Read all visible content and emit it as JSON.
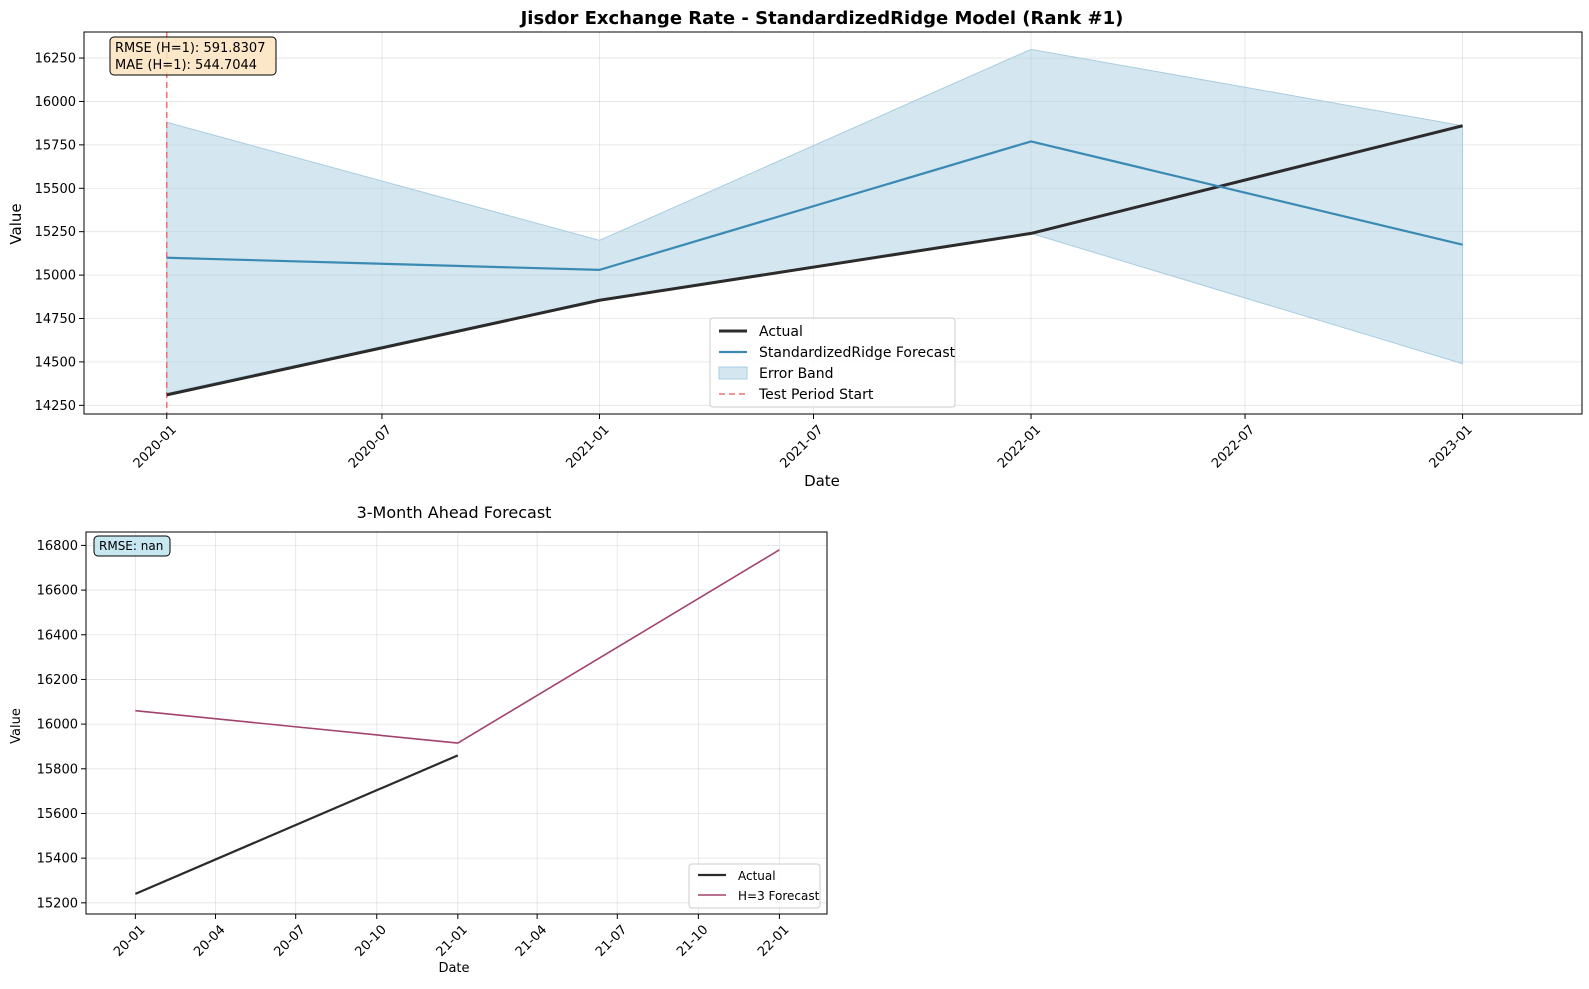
{
  "chart_data": [
    {
      "type": "line",
      "title": "Jisdor Exchange Rate - StandardizedRidge Model (Rank #1)",
      "xlabel": "Date",
      "ylabel": "Value",
      "x": [
        "2020-01-01",
        "2021-01-01",
        "2022-01-01",
        "2023-01-01"
      ],
      "x_ticks": [
        "2020-01",
        "2020-07",
        "2021-01",
        "2021-07",
        "2022-01",
        "2022-07",
        "2023-01"
      ],
      "y_ticks": [
        14250,
        14500,
        14750,
        15000,
        15250,
        15500,
        15750,
        16000,
        16250
      ],
      "xlim": [
        "2019-10-23",
        "2023-04-12"
      ],
      "ylim": [
        14200,
        16400
      ],
      "grid": true,
      "legend_placement": "lower-center",
      "series": [
        {
          "name": "Actual",
          "values": [
            14310,
            14855,
            15240,
            15860
          ],
          "color": "#2b2b2b"
        },
        {
          "name": "StandardizedRidge Forecast",
          "values": [
            15100,
            15030,
            15770,
            15175
          ],
          "color": "#3a8ab4"
        }
      ],
      "band": {
        "name": "Error Band",
        "lower": [
          14320,
          14860,
          15240,
          14490
        ],
        "upper": [
          15880,
          15200,
          16300,
          15860
        ],
        "color": "#a9cde0"
      },
      "vline": {
        "name": "Test Period Start",
        "x": "2020-01-01",
        "color": "#f07070"
      },
      "annotation": [
        "RMSE (H=1): 591.8307",
        "MAE (H=1): 544.7044"
      ]
    },
    {
      "type": "line",
      "title": "3-Month Ahead Forecast",
      "xlabel": "Date",
      "ylabel": "Value",
      "x_ticks": [
        "20-01",
        "20-04",
        "20-07",
        "20-10",
        "21-01",
        "21-04",
        "21-07",
        "21-10",
        "22-01"
      ],
      "y_ticks": [
        15200,
        15400,
        15600,
        15800,
        16000,
        16200,
        16400,
        16600,
        16800
      ],
      "xlim": [
        "2019-11-06",
        "2022-02-24"
      ],
      "ylim": [
        15150,
        16860
      ],
      "grid": true,
      "legend_placement": "lower-right",
      "series": [
        {
          "name": "Actual",
          "x": [
            "2020-01-01",
            "2021-01-01"
          ],
          "values": [
            15240,
            15860
          ],
          "color": "#2b2b2b"
        },
        {
          "name": "H=3 Forecast",
          "x": [
            "2020-01-01",
            "2021-01-01",
            "2022-01-01"
          ],
          "values": [
            16060,
            15915,
            16780
          ],
          "color": "#a3426f"
        }
      ],
      "annotation": [
        "RMSE: nan"
      ]
    }
  ]
}
